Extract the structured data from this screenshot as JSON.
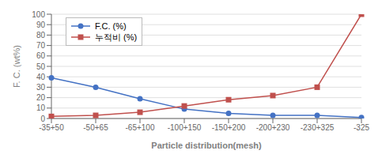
{
  "chart_data": {
    "type": "line",
    "categories": [
      "-35+50",
      "-50+65",
      "-65+100",
      "-100+150",
      "-150+200",
      "-200+230",
      "-230+325",
      "-325"
    ],
    "series": [
      {
        "name": "F.C. (%)",
        "color": "#4472C4",
        "marker": "circle",
        "values": [
          39,
          30,
          19,
          9,
          5,
          3,
          3,
          1
        ]
      },
      {
        "name": "누적비 (%)",
        "color": "#C0504D",
        "marker": "square",
        "values": [
          2,
          3,
          6,
          12,
          18,
          22,
          30,
          100
        ]
      }
    ],
    "xlabel": "Particle distribution(mesh)",
    "ylabel": "F. C. (wt%)",
    "ylim": [
      0,
      100
    ],
    "yticks": [
      0,
      10,
      20,
      30,
      40,
      50,
      60,
      70,
      80,
      90,
      100
    ],
    "grid": "y",
    "legend": "upper left"
  }
}
